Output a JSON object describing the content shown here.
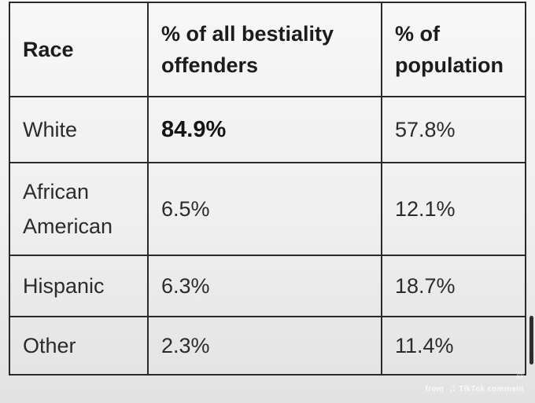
{
  "table": {
    "headers": [
      "Race",
      "% of all bestiality offenders",
      "% of population"
    ],
    "rows": [
      {
        "race_line1": "White",
        "race_line2": "",
        "offenders": "84.9%",
        "population": "57.8%"
      },
      {
        "race_line1": "African",
        "race_line2": "American",
        "offenders": "6.5%",
        "population": "12.1%"
      },
      {
        "race_line1": "Hispanic",
        "race_line2": "",
        "offenders": "6.3%",
        "population": "18.7%"
      },
      {
        "race_line1": "Other",
        "race_line2": "",
        "offenders": "2.3%",
        "population": "11.4%"
      }
    ]
  },
  "watermark": {
    "handle": "@",
    "prefix": "from",
    "brand": "TikTok",
    "suffix": "comment"
  }
}
